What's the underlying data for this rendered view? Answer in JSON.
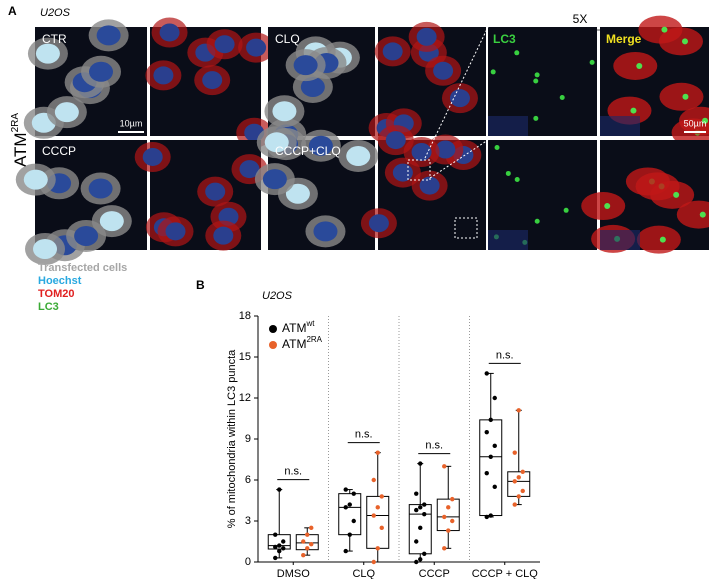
{
  "panel_a": {
    "label": "A",
    "cell_line": "U2OS",
    "zoom": "5X",
    "row_label": "ATM",
    "row_label_sup": "2RA",
    "panels": [
      {
        "label": "CTR"
      },
      {
        "label": "CLQ"
      },
      {
        "label": "LC3"
      },
      {
        "label": "Merge"
      },
      {
        "label": "CCCP"
      },
      {
        "label": "CCCP+CLQ"
      }
    ],
    "scale_bars": [
      "10µm",
      "50µm"
    ],
    "channel_legend": [
      {
        "text": "Transfected cells",
        "color": "#a6a6a6"
      },
      {
        "text": "Hoechst",
        "color": "#29a9e0"
      },
      {
        "text": "TOM20",
        "color": "#e02020"
      },
      {
        "text": "LC3",
        "color": "#3aaa35"
      }
    ]
  },
  "chart_data": {
    "type": "box",
    "panel_label": "B",
    "subtitle": "U2OS",
    "ylabel": "% of mitochondria within LC3 puncta",
    "categories": [
      "DMSO",
      "CLQ",
      "CCCP",
      "CCCP + CLQ"
    ],
    "ylim": [
      0,
      18
    ],
    "yticks": [
      0,
      3,
      6,
      9,
      12,
      15,
      18
    ],
    "series": [
      {
        "name": "ATM",
        "sup": "wt",
        "color": "#000000",
        "values": [
          {
            "min": 0.3,
            "q1": 0.95,
            "median": 1.2,
            "q3": 2.0,
            "max": 5.3,
            "points": [
              0.3,
              0.8,
              1.0,
              1.1,
              1.2,
              1.5,
              2.0,
              5.3
            ]
          },
          {
            "min": 0.8,
            "q1": 2.0,
            "median": 4.0,
            "q3": 5.0,
            "max": 5.3,
            "points": [
              0.8,
              2.0,
              3.0,
              4.0,
              4.2,
              5.0,
              5.3
            ]
          },
          {
            "min": 0,
            "q1": 0.6,
            "median": 3.5,
            "q3": 4.2,
            "max": 7.2,
            "points": [
              0,
              0.2,
              0.6,
              1.5,
              2.5,
              3.5,
              3.8,
              4.0,
              4.2,
              5.0,
              7.2
            ]
          },
          {
            "min": 3.3,
            "q1": 3.4,
            "median": 7.7,
            "q3": 10.4,
            "max": 13.8,
            "points": [
              3.3,
              3.4,
              5.5,
              6.5,
              7.7,
              8.5,
              9.5,
              10.4,
              12.0,
              13.8
            ]
          }
        ]
      },
      {
        "name": "ATM",
        "sup": "2RA",
        "color": "#e8622a",
        "values": [
          {
            "min": 0.5,
            "q1": 0.9,
            "median": 1.4,
            "q3": 2.0,
            "max": 2.5,
            "points": [
              0.5,
              1.0,
              1.3,
              1.5,
              2.0,
              2.5
            ]
          },
          {
            "min": 0,
            "q1": 1.0,
            "median": 3.4,
            "q3": 4.8,
            "max": 8.0,
            "points": [
              0,
              1.0,
              2.5,
              3.4,
              4.0,
              4.8,
              6.0,
              8.0
            ]
          },
          {
            "min": 1.0,
            "q1": 2.3,
            "median": 3.3,
            "q3": 4.6,
            "max": 7.0,
            "points": [
              1.0,
              2.3,
              3.0,
              3.3,
              4.0,
              4.6,
              7.0
            ]
          },
          {
            "min": 4.2,
            "q1": 4.8,
            "median": 5.9,
            "q3": 6.6,
            "max": 11.1,
            "points": [
              4.2,
              4.8,
              5.2,
              5.9,
              6.2,
              6.6,
              8.0,
              11.1
            ]
          }
        ]
      }
    ],
    "annotations": [
      {
        "text": "n.s."
      },
      {
        "text": "n.s."
      },
      {
        "text": "n.s."
      },
      {
        "text": "n.s."
      }
    ]
  }
}
